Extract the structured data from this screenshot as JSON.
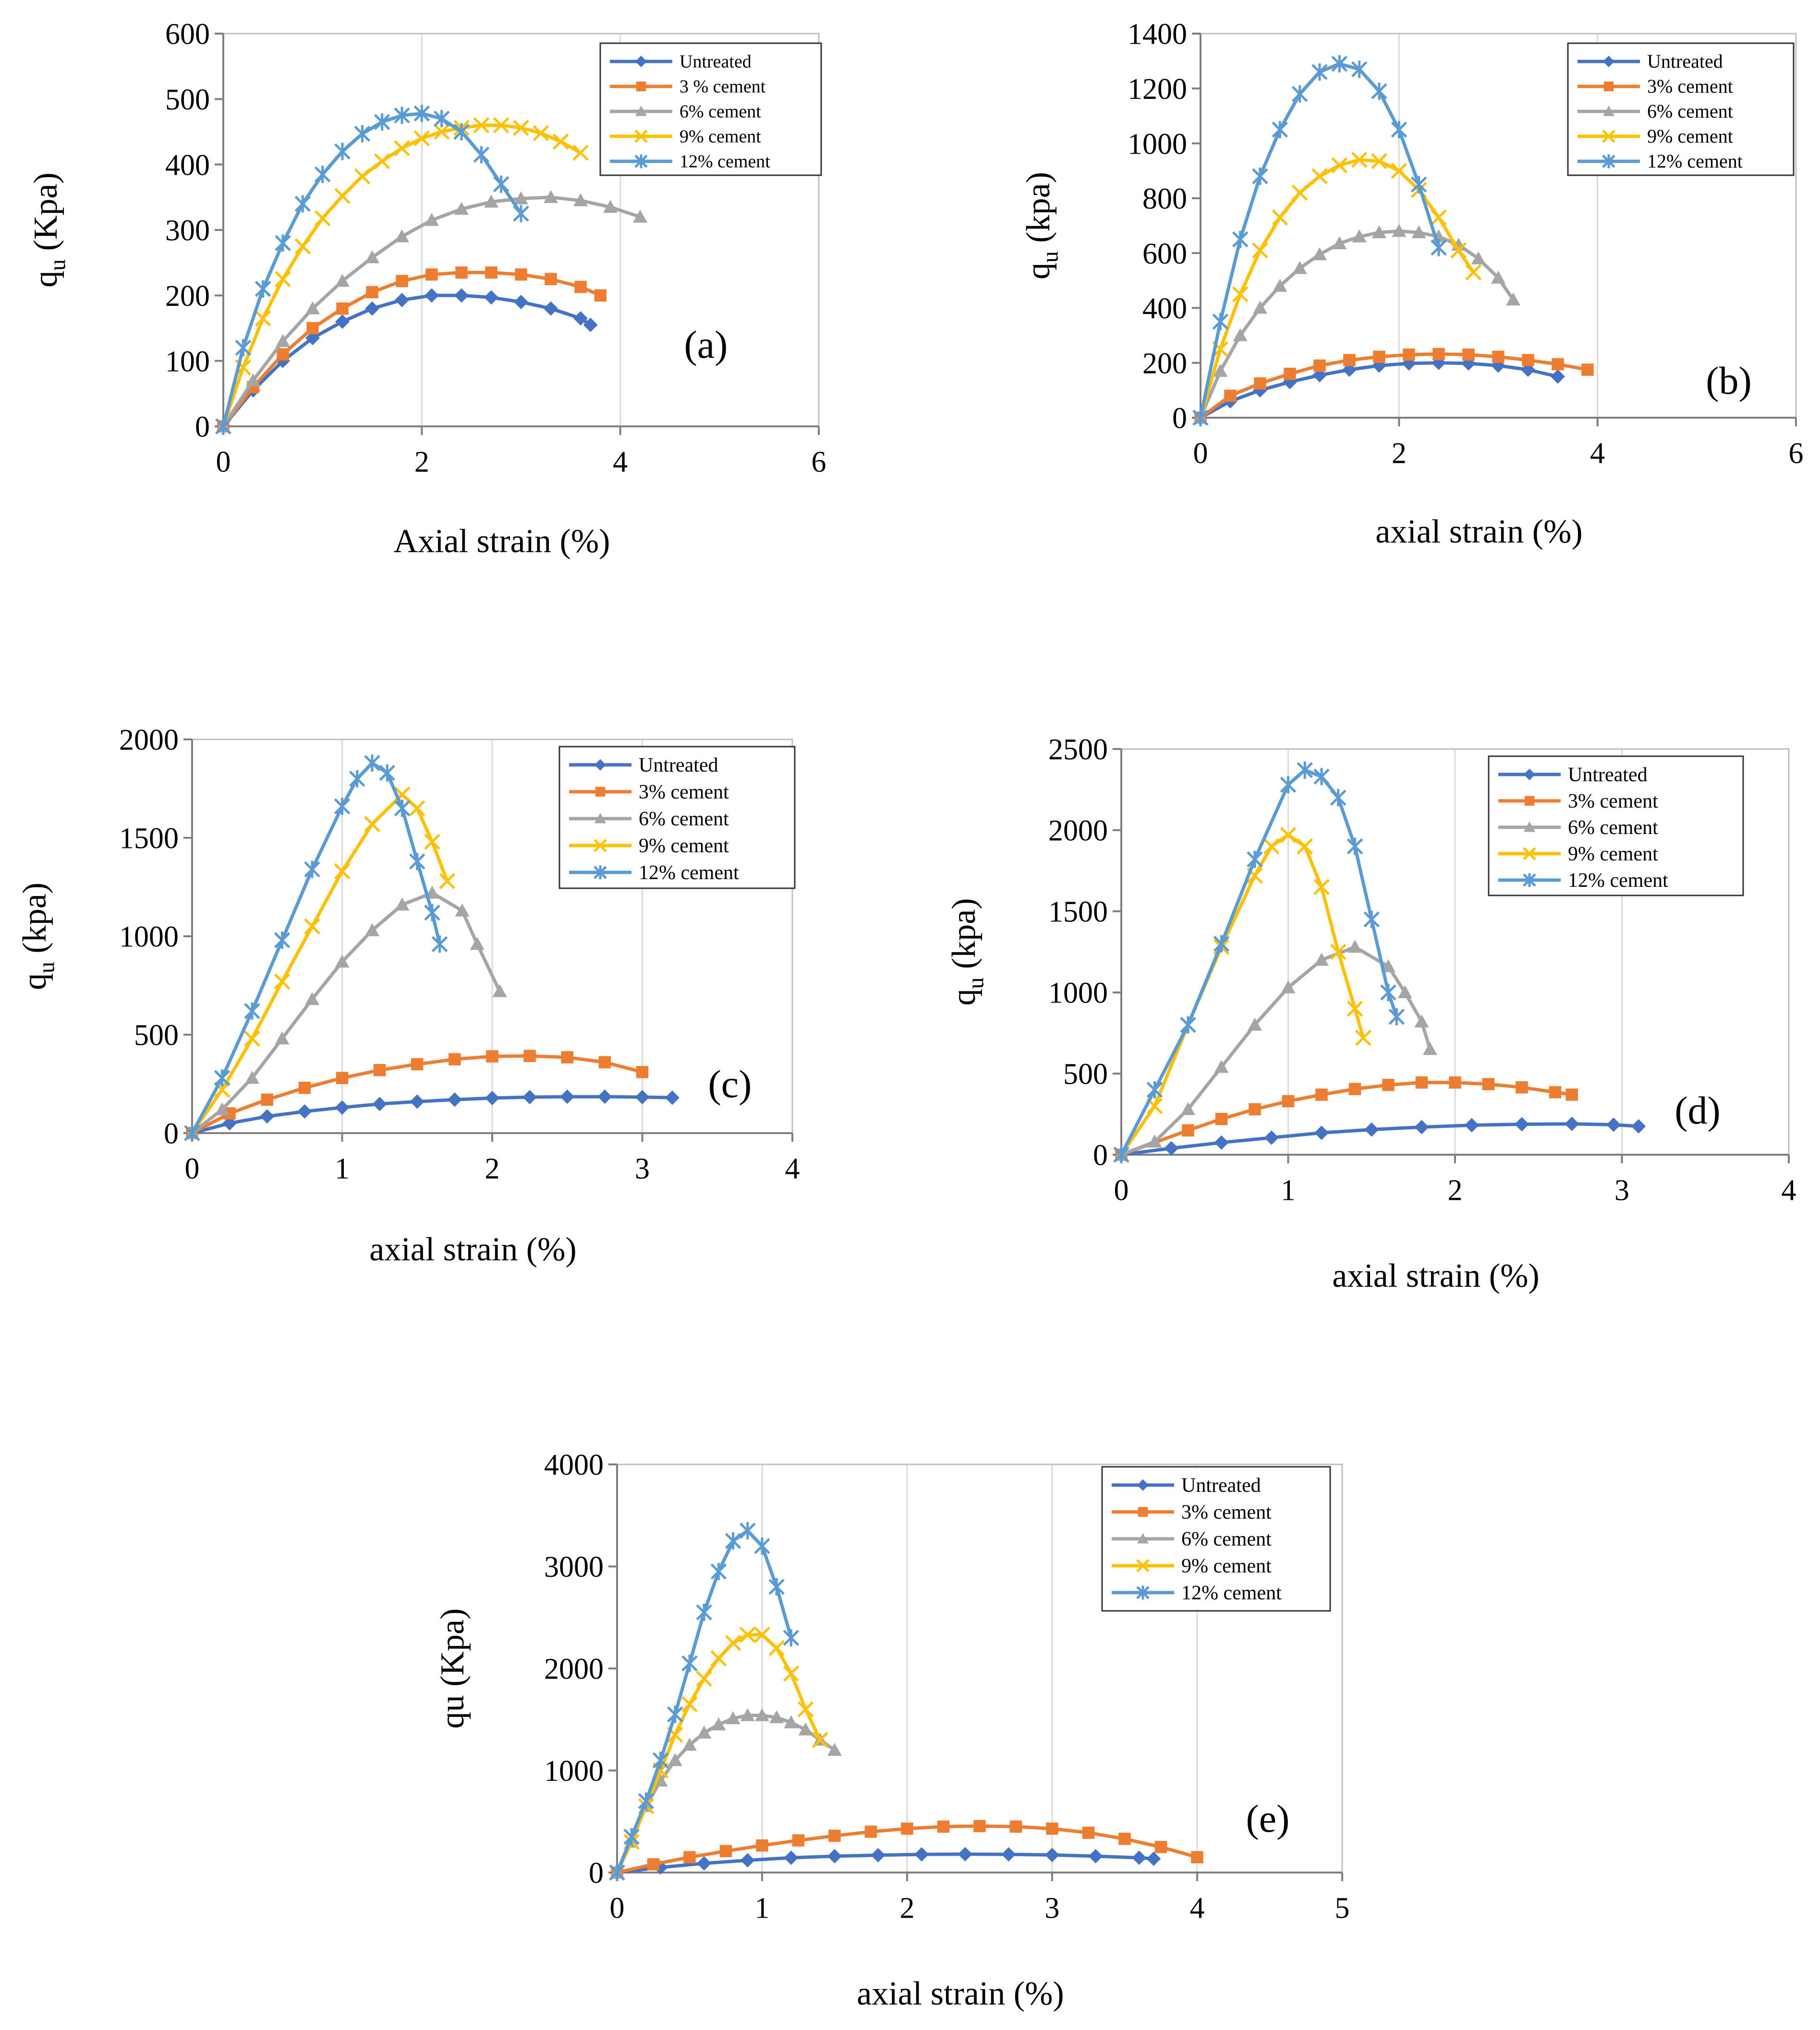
{
  "colors": {
    "untreated": "#4472C4",
    "c3": "#ED7D31",
    "c6": "#A5A5A5",
    "c9": "#FFC000",
    "c12": "#5B9BD5"
  },
  "chart_data": [
    {
      "id": "a",
      "type": "line",
      "panel_label": "(a)",
      "xlabel": "Axial strain (%)",
      "ylabel_main": "q",
      "ylabel_sub": "u",
      "ylabel_suffix": " (Kpa)",
      "xlim": [
        0,
        6
      ],
      "ylim": [
        0,
        600
      ],
      "xticks": [
        "0",
        "2",
        "4",
        "6"
      ],
      "yticks": [
        "0",
        "100",
        "200",
        "300",
        "400",
        "500",
        "600"
      ],
      "legend": [
        "Untreated",
        "3 % cement",
        "6% cement",
        "9% cement",
        "12% cement"
      ],
      "series": [
        {
          "name": "Untreated",
          "color": "untreated",
          "marker": "diamond",
          "x": [
            0,
            0.3,
            0.6,
            0.9,
            1.2,
            1.5,
            1.8,
            2.1,
            2.4,
            2.7,
            3.0,
            3.3,
            3.6,
            3.7
          ],
          "y": [
            0,
            55,
            100,
            135,
            160,
            180,
            193,
            200,
            200,
            197,
            190,
            180,
            165,
            155
          ]
        },
        {
          "name": "3 % cement",
          "color": "c3",
          "marker": "square",
          "x": [
            0,
            0.3,
            0.6,
            0.9,
            1.2,
            1.5,
            1.8,
            2.1,
            2.4,
            2.7,
            3.0,
            3.3,
            3.6,
            3.8
          ],
          "y": [
            0,
            60,
            110,
            150,
            180,
            205,
            222,
            232,
            235,
            235,
            232,
            225,
            213,
            200
          ]
        },
        {
          "name": "6% cement",
          "color": "c6",
          "marker": "triangle",
          "x": [
            0,
            0.3,
            0.6,
            0.9,
            1.2,
            1.5,
            1.8,
            2.1,
            2.4,
            2.7,
            3.0,
            3.3,
            3.6,
            3.9,
            4.2
          ],
          "y": [
            0,
            70,
            130,
            180,
            222,
            258,
            290,
            315,
            332,
            343,
            348,
            350,
            345,
            335,
            320
          ]
        },
        {
          "name": "9% cement",
          "color": "c9",
          "marker": "x",
          "x": [
            0,
            0.2,
            0.4,
            0.6,
            0.8,
            1.0,
            1.2,
            1.4,
            1.6,
            1.8,
            2.0,
            2.2,
            2.4,
            2.6,
            2.8,
            3.0,
            3.2,
            3.4,
            3.6
          ],
          "y": [
            0,
            90,
            165,
            225,
            275,
            318,
            352,
            382,
            405,
            425,
            440,
            450,
            456,
            460,
            460,
            456,
            448,
            435,
            418
          ]
        },
        {
          "name": "12% cement",
          "color": "c12",
          "marker": "star",
          "x": [
            0,
            0.2,
            0.4,
            0.6,
            0.8,
            1.0,
            1.2,
            1.4,
            1.6,
            1.8,
            2.0,
            2.2,
            2.4,
            2.6,
            2.8,
            3.0
          ],
          "y": [
            0,
            120,
            210,
            280,
            340,
            385,
            420,
            447,
            465,
            475,
            478,
            470,
            450,
            415,
            370,
            325
          ]
        }
      ]
    },
    {
      "id": "b",
      "type": "line",
      "panel_label": "(b)",
      "xlabel": "axial strain (%)",
      "ylabel_main": "q",
      "ylabel_sub": "u",
      "ylabel_suffix": " (kpa)",
      "xlim": [
        0,
        6
      ],
      "ylim": [
        0,
        1400
      ],
      "xticks": [
        "0",
        "2",
        "4",
        "6"
      ],
      "yticks": [
        "0",
        "200",
        "400",
        "600",
        "800",
        "1000",
        "1200",
        "1400"
      ],
      "legend": [
        "Untreated",
        "3% cement",
        "6% cement",
        "9% cement",
        "12% cement"
      ],
      "series": [
        {
          "name": "Untreated",
          "color": "untreated",
          "marker": "diamond",
          "x": [
            0,
            0.3,
            0.6,
            0.9,
            1.2,
            1.5,
            1.8,
            2.1,
            2.4,
            2.7,
            3.0,
            3.3,
            3.6
          ],
          "y": [
            0,
            60,
            100,
            130,
            155,
            175,
            190,
            198,
            200,
            198,
            190,
            175,
            150
          ]
        },
        {
          "name": "3% cement",
          "color": "c3",
          "marker": "square",
          "x": [
            0,
            0.3,
            0.6,
            0.9,
            1.2,
            1.5,
            1.8,
            2.1,
            2.4,
            2.7,
            3.0,
            3.3,
            3.6,
            3.9
          ],
          "y": [
            0,
            80,
            125,
            160,
            190,
            210,
            222,
            230,
            232,
            230,
            222,
            210,
            195,
            175
          ]
        },
        {
          "name": "6% cement",
          "color": "c6",
          "marker": "triangle",
          "x": [
            0,
            0.2,
            0.4,
            0.6,
            0.8,
            1.0,
            1.2,
            1.4,
            1.6,
            1.8,
            2.0,
            2.2,
            2.4,
            2.6,
            2.8,
            3.0,
            3.15
          ],
          "y": [
            0,
            170,
            300,
            400,
            480,
            545,
            595,
            635,
            660,
            675,
            680,
            675,
            660,
            630,
            580,
            510,
            430
          ]
        },
        {
          "name": "9% cement",
          "color": "c9",
          "marker": "x",
          "x": [
            0,
            0.2,
            0.4,
            0.6,
            0.8,
            1.0,
            1.2,
            1.4,
            1.6,
            1.8,
            2.0,
            2.2,
            2.4,
            2.6,
            2.75
          ],
          "y": [
            0,
            250,
            450,
            610,
            730,
            820,
            880,
            920,
            940,
            935,
            900,
            830,
            730,
            610,
            530
          ]
        },
        {
          "name": "12% cement",
          "color": "c12",
          "marker": "star",
          "x": [
            0,
            0.2,
            0.4,
            0.6,
            0.8,
            1.0,
            1.2,
            1.4,
            1.6,
            1.8,
            2.0,
            2.2,
            2.4
          ],
          "y": [
            0,
            350,
            650,
            880,
            1050,
            1180,
            1260,
            1290,
            1270,
            1190,
            1050,
            850,
            620
          ]
        }
      ]
    },
    {
      "id": "c",
      "type": "line",
      "panel_label": "(c)",
      "xlabel": "axial strain (%)",
      "ylabel_main": "q",
      "ylabel_sub": "u",
      "ylabel_suffix": " (kpa)",
      "xlim": [
        0,
        4
      ],
      "ylim": [
        0,
        2000
      ],
      "xticks": [
        "0",
        "1",
        "2",
        "3",
        "4"
      ],
      "yticks": [
        "0",
        "500",
        "1000",
        "1500",
        "2000"
      ],
      "legend": [
        "Untreated",
        "3% cement",
        "6% cement",
        "9% cement",
        "12% cement"
      ],
      "series": [
        {
          "name": "Untreated",
          "color": "untreated",
          "marker": "diamond",
          "x": [
            0,
            0.25,
            0.5,
            0.75,
            1.0,
            1.25,
            1.5,
            1.75,
            2.0,
            2.25,
            2.5,
            2.75,
            3.0,
            3.2
          ],
          "y": [
            0,
            50,
            85,
            110,
            130,
            148,
            160,
            170,
            178,
            183,
            185,
            185,
            183,
            180
          ]
        },
        {
          "name": "3% cement",
          "color": "c3",
          "marker": "square",
          "x": [
            0,
            0.25,
            0.5,
            0.75,
            1.0,
            1.25,
            1.5,
            1.75,
            2.0,
            2.25,
            2.5,
            2.75,
            3.0
          ],
          "y": [
            0,
            100,
            170,
            230,
            280,
            320,
            350,
            375,
            390,
            392,
            385,
            360,
            310
          ]
        },
        {
          "name": "6% cement",
          "color": "c6",
          "marker": "triangle",
          "x": [
            0,
            0.2,
            0.4,
            0.6,
            0.8,
            1.0,
            1.2,
            1.4,
            1.6,
            1.8,
            1.9,
            2.05
          ],
          "y": [
            0,
            120,
            280,
            480,
            680,
            870,
            1030,
            1160,
            1220,
            1130,
            960,
            720
          ]
        },
        {
          "name": "9% cement",
          "color": "c9",
          "marker": "x",
          "x": [
            0,
            0.2,
            0.4,
            0.6,
            0.8,
            1.0,
            1.2,
            1.4,
            1.5,
            1.6,
            1.7
          ],
          "y": [
            0,
            220,
            480,
            770,
            1050,
            1330,
            1570,
            1720,
            1650,
            1480,
            1280
          ]
        },
        {
          "name": "12% cement",
          "color": "c12",
          "marker": "star",
          "x": [
            0,
            0.2,
            0.4,
            0.6,
            0.8,
            1.0,
            1.1,
            1.2,
            1.3,
            1.4,
            1.5,
            1.6,
            1.65
          ],
          "y": [
            0,
            280,
            620,
            980,
            1340,
            1660,
            1800,
            1880,
            1830,
            1650,
            1380,
            1120,
            960
          ]
        }
      ]
    },
    {
      "id": "d",
      "type": "line",
      "panel_label": "(d)",
      "xlabel": "axial strain (%)",
      "ylabel_main": "q",
      "ylabel_sub": "u",
      "ylabel_suffix": " (kpa)",
      "xlim": [
        0,
        4
      ],
      "ylim": [
        0,
        2500
      ],
      "xticks": [
        "0",
        "1",
        "2",
        "3",
        "4"
      ],
      "yticks": [
        "0",
        "500",
        "1000",
        "1500",
        "2000",
        "2500"
      ],
      "legend": [
        "Untreated",
        "3% cement",
        "6% cement",
        "9% cement",
        "12% cement"
      ],
      "series": [
        {
          "name": "Untreated",
          "color": "untreated",
          "marker": "diamond",
          "x": [
            0,
            0.3,
            0.6,
            0.9,
            1.2,
            1.5,
            1.8,
            2.1,
            2.4,
            2.7,
            2.95,
            3.1
          ],
          "y": [
            0,
            40,
            75,
            105,
            135,
            155,
            170,
            182,
            188,
            190,
            185,
            175
          ]
        },
        {
          "name": "3% cement",
          "color": "c3",
          "marker": "square",
          "x": [
            0,
            0.4,
            0.6,
            0.8,
            1.0,
            1.2,
            1.4,
            1.6,
            1.8,
            2.0,
            2.2,
            2.4,
            2.6,
            2.7
          ],
          "y": [
            0,
            150,
            220,
            280,
            330,
            370,
            405,
            430,
            445,
            445,
            435,
            415,
            385,
            370
          ]
        },
        {
          "name": "6% cement",
          "color": "c6",
          "marker": "triangle",
          "x": [
            0,
            0.2,
            0.4,
            0.6,
            0.8,
            1.0,
            1.2,
            1.4,
            1.6,
            1.7,
            1.8,
            1.85
          ],
          "y": [
            0,
            80,
            280,
            540,
            800,
            1030,
            1200,
            1280,
            1160,
            1000,
            820,
            650
          ]
        },
        {
          "name": "9% cement",
          "color": "c9",
          "marker": "x",
          "x": [
            0,
            0.2,
            0.4,
            0.6,
            0.8,
            0.9,
            1.0,
            1.1,
            1.2,
            1.3,
            1.4,
            1.45
          ],
          "y": [
            0,
            300,
            800,
            1280,
            1720,
            1900,
            1970,
            1900,
            1650,
            1250,
            900,
            720
          ]
        },
        {
          "name": "12% cement",
          "color": "c12",
          "marker": "star",
          "x": [
            0,
            0.2,
            0.4,
            0.6,
            0.8,
            1.0,
            1.1,
            1.2,
            1.3,
            1.4,
            1.5,
            1.6,
            1.65
          ],
          "y": [
            0,
            400,
            800,
            1300,
            1820,
            2280,
            2370,
            2330,
            2200,
            1900,
            1450,
            1000,
            850
          ]
        }
      ]
    },
    {
      "id": "e",
      "type": "line",
      "panel_label": "(e)",
      "xlabel": "axial strain (%)",
      "ylabel_main": "qu (Kpa)",
      "ylabel_sub": "",
      "ylabel_suffix": "",
      "xlim": [
        0,
        5
      ],
      "ylim": [
        0,
        4000
      ],
      "xticks": [
        "0",
        "1",
        "2",
        "3",
        "4",
        "5"
      ],
      "yticks": [
        "0",
        "1000",
        "2000",
        "3000",
        "4000"
      ],
      "legend": [
        "Untreated",
        "3% cement",
        "6% cement",
        "9% cement",
        "12% cement"
      ],
      "series": [
        {
          "name": "Untreated",
          "color": "untreated",
          "marker": "diamond",
          "x": [
            0,
            0.3,
            0.6,
            0.9,
            1.2,
            1.5,
            1.8,
            2.1,
            2.4,
            2.7,
            3.0,
            3.3,
            3.6,
            3.7
          ],
          "y": [
            0,
            50,
            90,
            120,
            145,
            160,
            170,
            178,
            180,
            178,
            172,
            160,
            145,
            135
          ]
        },
        {
          "name": "3% cement",
          "color": "c3",
          "marker": "square",
          "x": [
            0,
            0.25,
            0.5,
            0.75,
            1.0,
            1.25,
            1.5,
            1.75,
            2.0,
            2.25,
            2.5,
            2.75,
            3.0,
            3.25,
            3.5,
            3.75,
            4.0
          ],
          "y": [
            0,
            80,
            150,
            210,
            265,
            315,
            360,
            400,
            430,
            450,
            455,
            450,
            430,
            390,
            330,
            250,
            150
          ]
        },
        {
          "name": "6% cement",
          "color": "c6",
          "marker": "triangle",
          "x": [
            0,
            0.1,
            0.2,
            0.3,
            0.4,
            0.5,
            0.6,
            0.7,
            0.8,
            0.9,
            1.0,
            1.1,
            1.2,
            1.3,
            1.4,
            1.5
          ],
          "y": [
            0,
            300,
            650,
            900,
            1100,
            1250,
            1370,
            1450,
            1510,
            1540,
            1540,
            1520,
            1470,
            1400,
            1300,
            1200
          ]
        },
        {
          "name": "9% cement",
          "color": "c9",
          "marker": "x",
          "x": [
            0,
            0.1,
            0.2,
            0.3,
            0.4,
            0.5,
            0.6,
            0.7,
            0.8,
            0.9,
            1.0,
            1.1,
            1.2,
            1.3,
            1.4
          ],
          "y": [
            0,
            300,
            650,
            1000,
            1350,
            1650,
            1900,
            2100,
            2250,
            2330,
            2330,
            2200,
            1950,
            1600,
            1300
          ]
        },
        {
          "name": "12% cement",
          "color": "c12",
          "marker": "star",
          "x": [
            0,
            0.1,
            0.2,
            0.3,
            0.4,
            0.5,
            0.6,
            0.7,
            0.8,
            0.9,
            1.0,
            1.1,
            1.2
          ],
          "y": [
            0,
            350,
            700,
            1100,
            1550,
            2050,
            2550,
            2950,
            3250,
            3350,
            3200,
            2800,
            2300
          ]
        }
      ]
    }
  ]
}
